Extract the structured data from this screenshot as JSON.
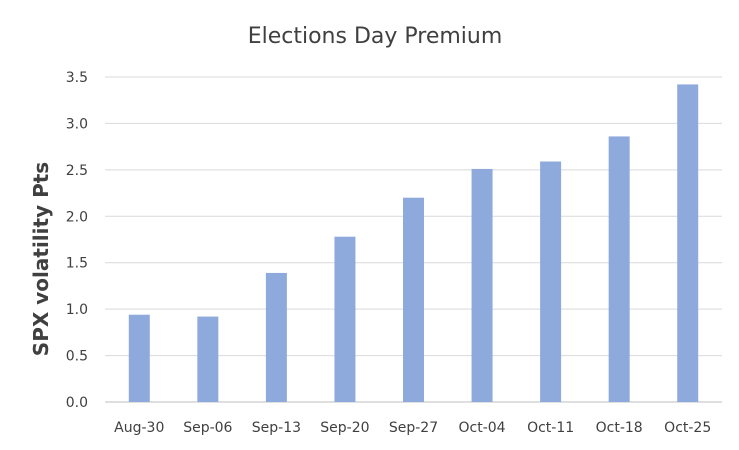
{
  "chart_data": {
    "type": "bar",
    "title": "Elections Day Premium",
    "xlabel": "",
    "ylabel": "SPX volatility Pts",
    "categories": [
      "Aug-30",
      "Sep-06",
      "Sep-13",
      "Sep-20",
      "Sep-27",
      "Oct-04",
      "Oct-11",
      "Oct-18",
      "Oct-25"
    ],
    "values": [
      0.94,
      0.92,
      1.39,
      1.78,
      2.2,
      2.51,
      2.59,
      2.86,
      3.42
    ],
    "ylim": [
      0,
      3.5
    ],
    "yticks": [
      "0.0",
      "0.5",
      "1.0",
      "1.5",
      "2.0",
      "2.5",
      "3.0",
      "3.5"
    ],
    "grid": true,
    "bar_color": "#8eaadc",
    "text_color": "#404040"
  }
}
